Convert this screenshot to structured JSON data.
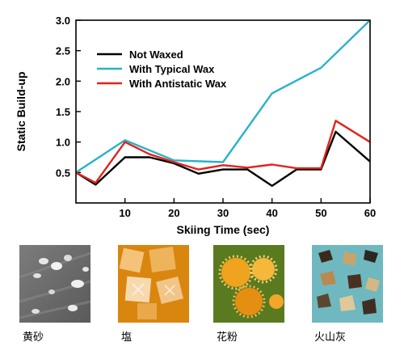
{
  "chart_data": {
    "type": "line",
    "title": "",
    "xlabel": "Skiing Time (sec)",
    "ylabel": "Static Build-up",
    "xlim": [
      0,
      60
    ],
    "ylim": [
      0,
      3.0
    ],
    "xticks": [
      10,
      20,
      30,
      40,
      50,
      60
    ],
    "yticks": [
      0.5,
      1.0,
      1.5,
      2.0,
      2.5,
      3.0
    ],
    "ytick_labels": [
      "0.5",
      "1.0",
      "1.5",
      "2.0",
      "2.5",
      "3.0"
    ],
    "grid": false,
    "legend_position": "top-left",
    "series": [
      {
        "name": "Not Waxed",
        "color": "#000000",
        "x": [
          0,
          4,
          10,
          15,
          20,
          25,
          30,
          35,
          40,
          45,
          50,
          53,
          60
        ],
        "y": [
          0.5,
          0.3,
          0.75,
          0.75,
          0.65,
          0.48,
          0.55,
          0.55,
          0.28,
          0.55,
          0.55,
          1.17,
          0.68
        ]
      },
      {
        "name": "With Typical Wax",
        "color": "#29b2c9",
        "x": [
          0,
          10,
          20,
          30,
          40,
          50,
          60
        ],
        "y": [
          0.5,
          1.03,
          0.7,
          0.67,
          1.8,
          2.22,
          3.0
        ]
      },
      {
        "name": "With Antistatic Wax",
        "color": "#e0241b",
        "x": [
          0,
          4,
          10,
          15,
          20,
          25,
          30,
          35,
          40,
          45,
          50,
          53,
          60
        ],
        "y": [
          0.5,
          0.33,
          1.0,
          0.8,
          0.67,
          0.55,
          0.62,
          0.58,
          0.63,
          0.57,
          0.57,
          1.35,
          1.0
        ]
      }
    ]
  },
  "photos": [
    {
      "caption": "黄砂",
      "subject": "dust-grains-micrograph"
    },
    {
      "caption": "塩",
      "subject": "salt-crystals"
    },
    {
      "caption": "花粉",
      "subject": "pollen-grains"
    },
    {
      "caption": "火山灰",
      "subject": "volcanic-ash-particles"
    }
  ]
}
